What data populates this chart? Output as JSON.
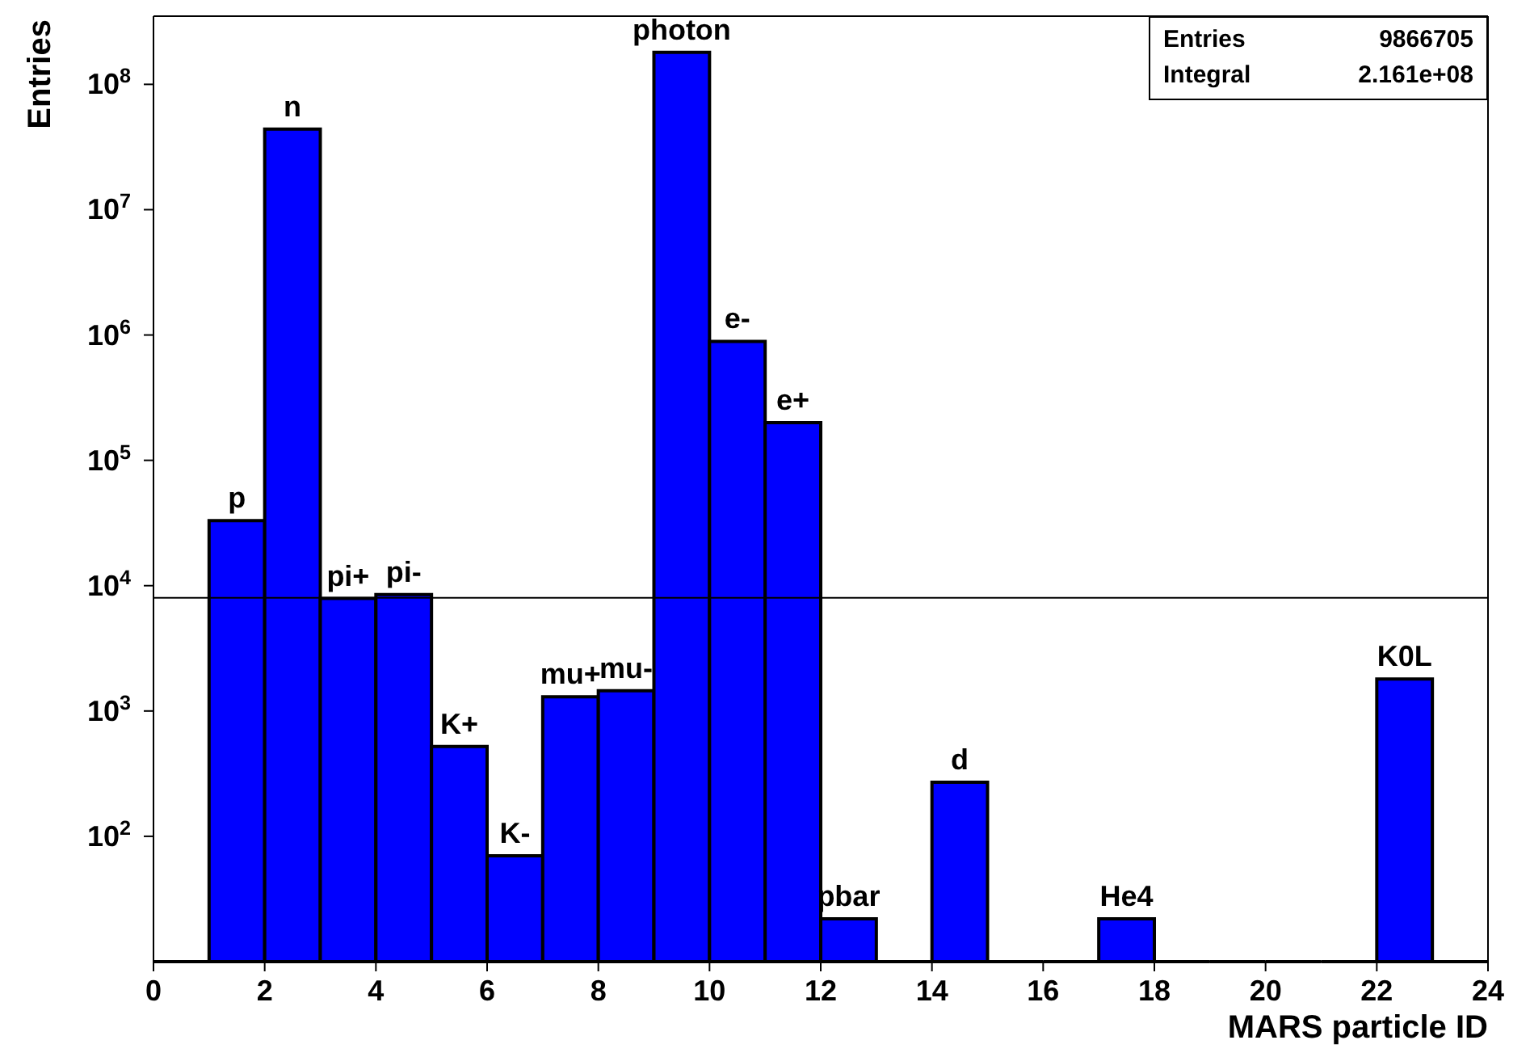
{
  "chart_data": {
    "type": "histogram",
    "xlabel": "MARS particle ID",
    "ylabel": "Entries",
    "log": true,
    "color": "#0000ff",
    "bins": [
      0,
      1,
      2,
      3,
      4,
      5,
      6,
      7,
      8,
      9,
      10,
      11,
      12,
      13,
      14,
      15,
      16,
      17,
      18,
      19,
      20,
      21,
      22,
      23,
      24
    ],
    "values": [
      null,
      33000,
      44000000,
      7900,
      8500,
      520,
      70,
      1300,
      1450,
      180000000,
      890000,
      200000,
      22,
      null,
      270,
      null,
      null,
      22,
      null,
      null,
      null,
      null,
      1800,
      null
    ],
    "xlim": [
      0,
      24
    ],
    "xticks": [
      0,
      2,
      4,
      6,
      8,
      10,
      12,
      14,
      16,
      18,
      20,
      22,
      24
    ],
    "ylim": [
      10,
      350000000
    ],
    "yticks": [
      {
        "value": 100,
        "label": "10$^{2}$"
      },
      {
        "value": 1000,
        "label": "10$^{3}$"
      },
      {
        "value": 10000,
        "label": "10$^{4}$"
      },
      {
        "value": 100000,
        "label": "10$^{5}$"
      },
      {
        "value": 1000000,
        "label": "10$^{6}$"
      },
      {
        "value": 10000000,
        "label": "10$^{7}$"
      },
      {
        "value": 100000000,
        "label": "10$^{8}$"
      }
    ],
    "ref_lines": [
      {
        "axis": "y",
        "value": 8000,
        "color": "#000000"
      }
    ],
    "annotations": [
      "Entries 9866705",
      "Integral 2.161e+08",
      {
        "text": "p",
        "x": 1.5,
        "y": 33000
      },
      {
        "text": "n",
        "x": 2.5,
        "y": 44000000
      },
      {
        "text": "pi+",
        "x": 3.5,
        "y": 7900
      },
      {
        "text": "pi-",
        "x": 4.5,
        "y": 8500
      },
      {
        "text": "K+",
        "x": 5.5,
        "y": 520
      },
      {
        "text": "K-",
        "x": 6.5,
        "y": 70
      },
      {
        "text": "mu+",
        "x": 7.5,
        "y": 1300
      },
      {
        "text": "mu-",
        "x": 8.5,
        "y": 1450
      },
      {
        "text": "photon",
        "x": 9.5,
        "y": 180000000
      },
      {
        "text": "e-",
        "x": 10.5,
        "y": 890000
      },
      {
        "text": "e+",
        "x": 11.5,
        "y": 200000
      },
      {
        "text": "pbar",
        "x": 12.5,
        "y": 22
      },
      {
        "text": "d",
        "x": 14.5,
        "y": 270
      },
      {
        "text": "He4",
        "x": 17.5,
        "y": 22
      },
      {
        "text": "K0L",
        "x": 22.5,
        "y": 1800
      }
    ]
  }
}
